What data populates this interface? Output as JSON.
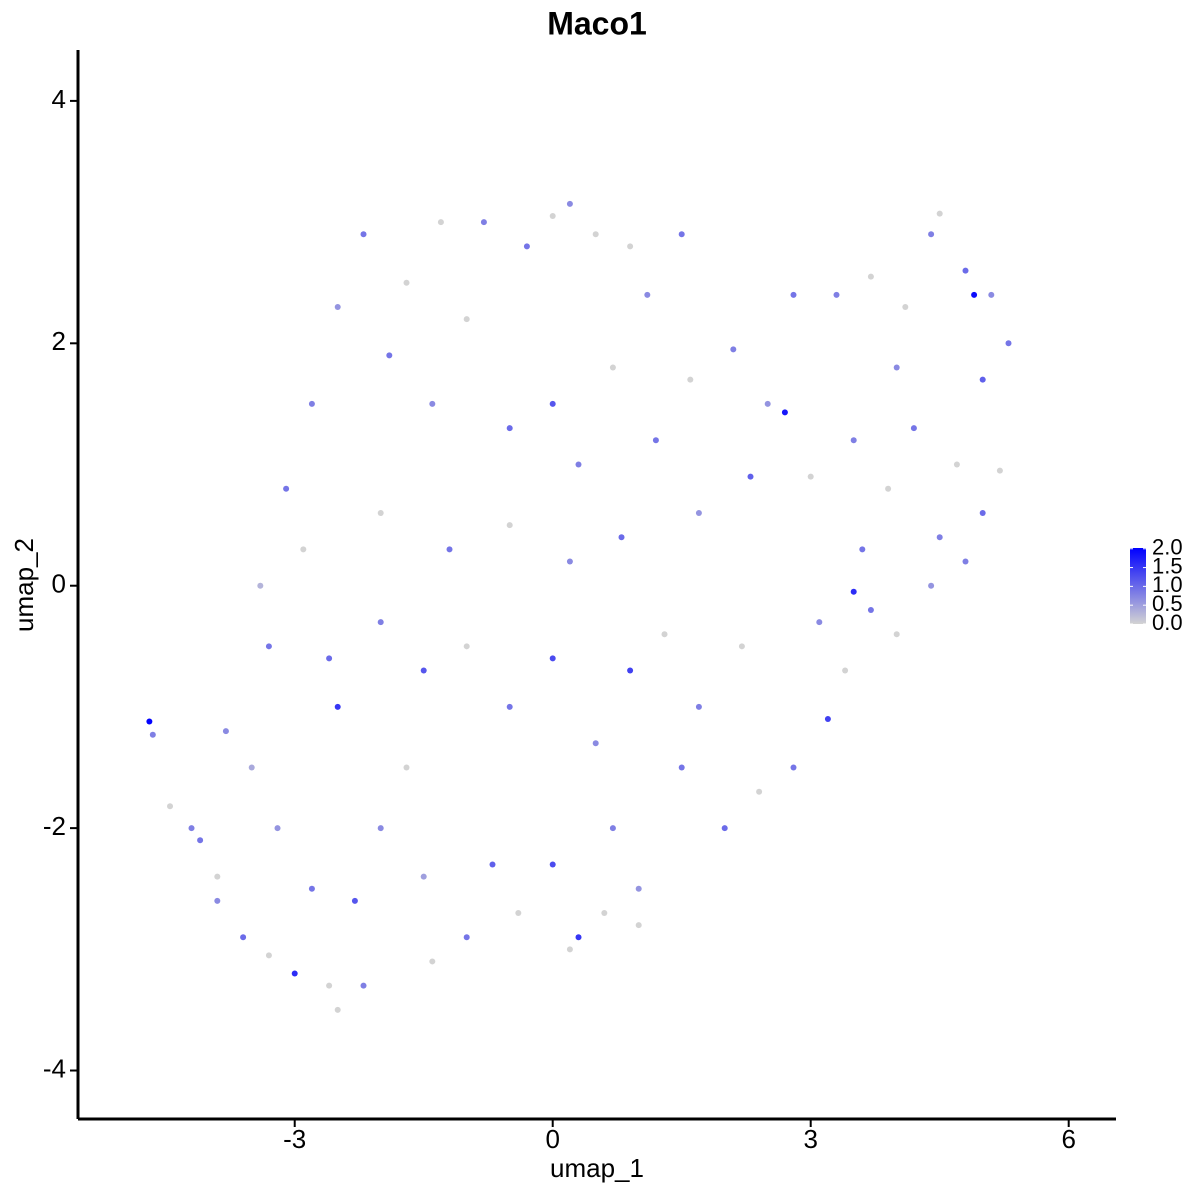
{
  "chart_data": {
    "type": "scatter",
    "title": "Maco1",
    "x_label": "umap_1",
    "y_label": "umap_2",
    "xlim": [
      -5.52,
      6.55
    ],
    "xticks": [
      -3,
      0,
      3,
      6
    ],
    "ylim": [
      -4.4,
      4.42
    ],
    "yticks": [
      -4,
      -2,
      0,
      2,
      4
    ],
    "x": [
      -4.69,
      -4.65,
      -4.45,
      -4.1,
      -3.9,
      -3.6,
      -3.3,
      -3.0,
      -2.6,
      -2.5,
      -2.2,
      -1.4,
      -2.8,
      -3.2,
      -3.5,
      -3.8,
      -3.3,
      -3.4,
      -3.1,
      -2.9,
      -2.5,
      -2.3,
      -2.0,
      -1.7,
      -1.5,
      -1.0,
      -0.7,
      -0.4,
      0,
      0.3,
      0.6,
      0.7,
      1.0,
      1.5,
      2.0,
      2.4,
      2.8,
      3.2,
      3.4,
      3.1,
      3.7,
      4.0,
      4.4,
      4.8,
      5.0,
      5.2,
      3.5,
      3.6,
      -2.0,
      -1.5,
      -1.0,
      -0.5,
      0,
      0.5,
      0.9,
      1.3,
      1.7,
      2.2,
      -2.8,
      -2.5,
      -2.2,
      -1.7,
      -1.3,
      -0.8,
      -0.3,
      0,
      0.2,
      0.5,
      0.9,
      1.1,
      1.5,
      -1.9,
      -1.4,
      -1.0,
      -0.5,
      0,
      0.3,
      0.7,
      1.2,
      1.6,
      2.1,
      2.5,
      2.7,
      2.8,
      3.3,
      3.7,
      4.1,
      4.4,
      4.5,
      4.8,
      5.1,
      5.3,
      4.9,
      4.0,
      3.5,
      3.0,
      2.3,
      1.7,
      0.8,
      0.2,
      -0.5,
      -1.2,
      -2.0,
      -2.6,
      4.2,
      4.7,
      5.0,
      4.5,
      3.9,
      -3.9,
      -4.2,
      0.2,
      1.0
    ],
    "y": [
      -1.12,
      -1.23,
      -1.82,
      -2.1,
      -2.6,
      -2.9,
      -3.05,
      -3.2,
      -3.3,
      -3.5,
      -3.3,
      -3.1,
      -2.5,
      -2.0,
      -1.5,
      -1.2,
      -0.5,
      0,
      0.8,
      0.3,
      -1.0,
      -2.6,
      -2.0,
      -1.5,
      -2.4,
      -2.9,
      -2.3,
      -2.7,
      -2.3,
      -2.9,
      -2.7,
      -2.0,
      -2.5,
      -1.5,
      -2.0,
      -1.7,
      -1.5,
      -1.1,
      -0.7,
      -0.3,
      -0.2,
      -0.4,
      0,
      0.2,
      0.6,
      0.95,
      -0.05,
      0.3,
      -0.3,
      -0.7,
      -0.5,
      -1.0,
      -0.6,
      -1.3,
      -0.7,
      -0.4,
      -1.0,
      -0.5,
      1.5,
      2.3,
      2.9,
      2.5,
      3.0,
      3.0,
      2.8,
      3.05,
      3.15,
      2.9,
      2.8,
      2.4,
      2.9,
      1.9,
      1.5,
      2.2,
      1.3,
      1.5,
      1.0,
      1.8,
      1.2,
      1.7,
      1.95,
      1.5,
      1.43,
      2.4,
      2.4,
      2.55,
      2.3,
      2.9,
      3.07,
      2.6,
      2.4,
      2.0,
      2.4,
      1.8,
      1.2,
      0.9,
      0.9,
      0.6,
      0.4,
      0.2,
      0.5,
      0.3,
      0.6,
      -0.6,
      1.3,
      1.0,
      1.7,
      0.4,
      0.8,
      -2.4,
      -2.0,
      -3.0,
      -2.8
    ],
    "values": [
      2.0,
      0.8,
      0,
      0.9,
      0.7,
      1.0,
      0,
      1.6,
      0,
      0,
      0.8,
      0,
      0.9,
      0.6,
      0.4,
      0.7,
      0.9,
      0.3,
      0.9,
      0,
      1.5,
      1.2,
      0.7,
      0,
      0.5,
      0.9,
      1.1,
      0,
      1.3,
      1.5,
      0,
      0.8,
      0.6,
      0.9,
      1.0,
      0,
      0.9,
      1.4,
      0,
      0.7,
      0.9,
      0,
      0.6,
      0.8,
      1.0,
      0,
      1.6,
      0.9,
      0.8,
      1.2,
      0,
      0.9,
      1.3,
      0.7,
      1.4,
      0,
      0.8,
      0,
      0.8,
      0.6,
      0.9,
      0,
      0,
      0.8,
      0.9,
      0,
      0.7,
      0,
      0,
      0.7,
      0.9,
      0.9,
      0.7,
      0,
      1.0,
      1.2,
      0.8,
      0,
      0.9,
      0,
      0.8,
      0.6,
      1.8,
      0.9,
      0.8,
      0,
      0,
      0.8,
      0,
      1.0,
      0.7,
      0.9,
      1.9,
      0.7,
      0.8,
      0,
      1.1,
      0.6,
      1.0,
      0.7,
      0,
      0.9,
      0,
      1.0,
      0.9,
      0,
      1.1,
      0.8,
      0,
      0,
      0.8,
      0,
      0
    ],
    "color_low": "#d3d3d3",
    "color_high": "#0000ff",
    "colorbar": {
      "lim": [
        0,
        2.02
      ],
      "ticks": [
        {
          "value": 0,
          "label": "0.0"
        },
        {
          "value": 0.5,
          "label": "0.5"
        },
        {
          "value": 1,
          "label": "1.0"
        },
        {
          "value": 1.5,
          "label": "1.5"
        },
        {
          "value": 2,
          "label": "2.0"
        }
      ]
    }
  }
}
